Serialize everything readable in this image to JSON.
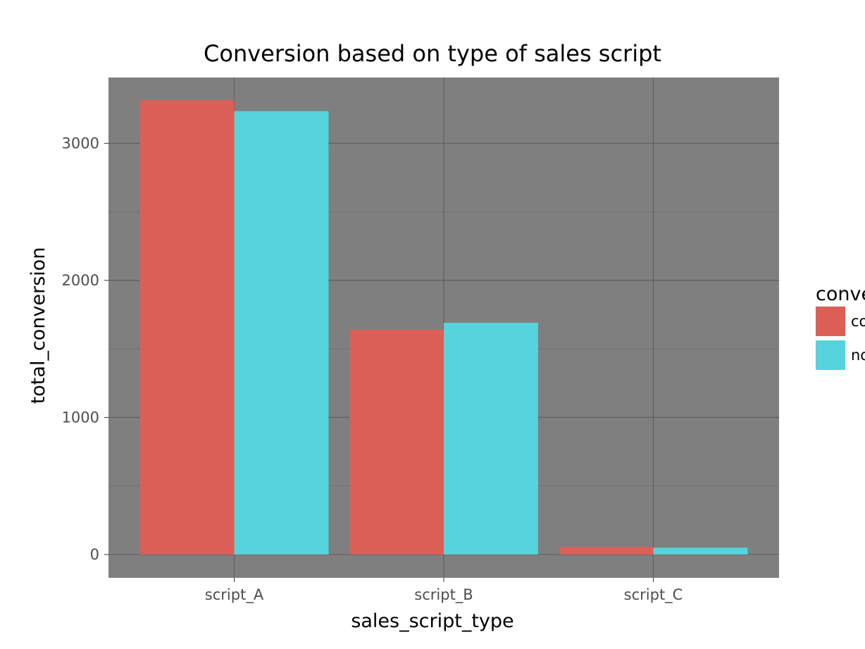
{
  "chart_data": {
    "type": "bar",
    "title": "Conversion based on type of sales script",
    "xlabel": "sales_script_type",
    "ylabel": "total_conversion",
    "categories": [
      "script_A",
      "script_B",
      "script_C"
    ],
    "series": [
      {
        "name": "converted",
        "color": "#db5f57",
        "values": [
          3315,
          1640,
          55
        ]
      },
      {
        "name": "not_converted",
        "color": "#57d3db",
        "values": [
          3235,
          1690,
          50
        ]
      }
    ],
    "ylim": [
      -170,
      3480
    ],
    "yticks": [
      0,
      1000,
      2000,
      3000
    ],
    "grid": true,
    "legend": {
      "title": "conversion",
      "placement": "right",
      "labels": [
        "converted",
        "not_converted"
      ]
    },
    "colors": {
      "panel_background": "#7f7f7f",
      "grid": "#5f5f5f"
    }
  }
}
